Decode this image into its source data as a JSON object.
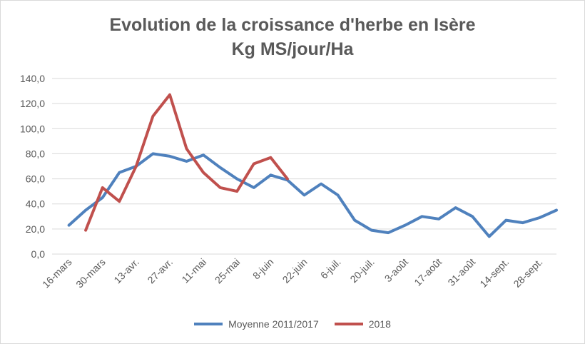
{
  "chart_data": {
    "type": "line",
    "title_line1": "Evolution de la croissance d'herbe en Isère",
    "title_line2": "Kg MS/jour/Ha",
    "categories": [
      "16-mars",
      "30-mars",
      "13-avr.",
      "27-avr.",
      "11-mai",
      "25-mai",
      "8-juin",
      "22-juin",
      "6-juil.",
      "20-juil.",
      "3-août",
      "17-août",
      "31-août",
      "14-sept.",
      "28-sept."
    ],
    "ylim": [
      0,
      140
    ],
    "yticks": [
      "0,0",
      "20,0",
      "40,0",
      "60,0",
      "80,0",
      "100,0",
      "120,0",
      "140,0"
    ],
    "grid": true,
    "legend_position": "bottom",
    "series": [
      {
        "name": "Moyenne 2011/2017",
        "color": "#4f81bd",
        "x": [
          0,
          0.5,
          1,
          1.5,
          2,
          2.5,
          3,
          3.5,
          4,
          4.5,
          5,
          5.5,
          6,
          6.5,
          7,
          7.5,
          8,
          8.5,
          9,
          9.5,
          10,
          10.5,
          11,
          11.5,
          12,
          12.5,
          13,
          13.5,
          14,
          14.5
        ],
        "values": [
          23,
          35,
          45,
          65,
          70,
          80,
          78,
          74,
          79,
          69,
          60,
          53,
          63,
          59,
          47,
          56,
          47,
          27,
          19,
          17,
          23,
          30,
          28,
          37,
          30,
          14,
          27,
          25,
          29,
          35
        ]
      },
      {
        "name": "2018",
        "color": "#c0504d",
        "x": [
          0.5,
          1,
          1.5,
          2,
          2.5,
          3,
          3.5,
          4,
          4.5,
          5,
          5.5,
          6,
          6.5
        ],
        "values": [
          19,
          53,
          42,
          70,
          110,
          127,
          84,
          65,
          53,
          50,
          72,
          77,
          60
        ]
      }
    ]
  }
}
